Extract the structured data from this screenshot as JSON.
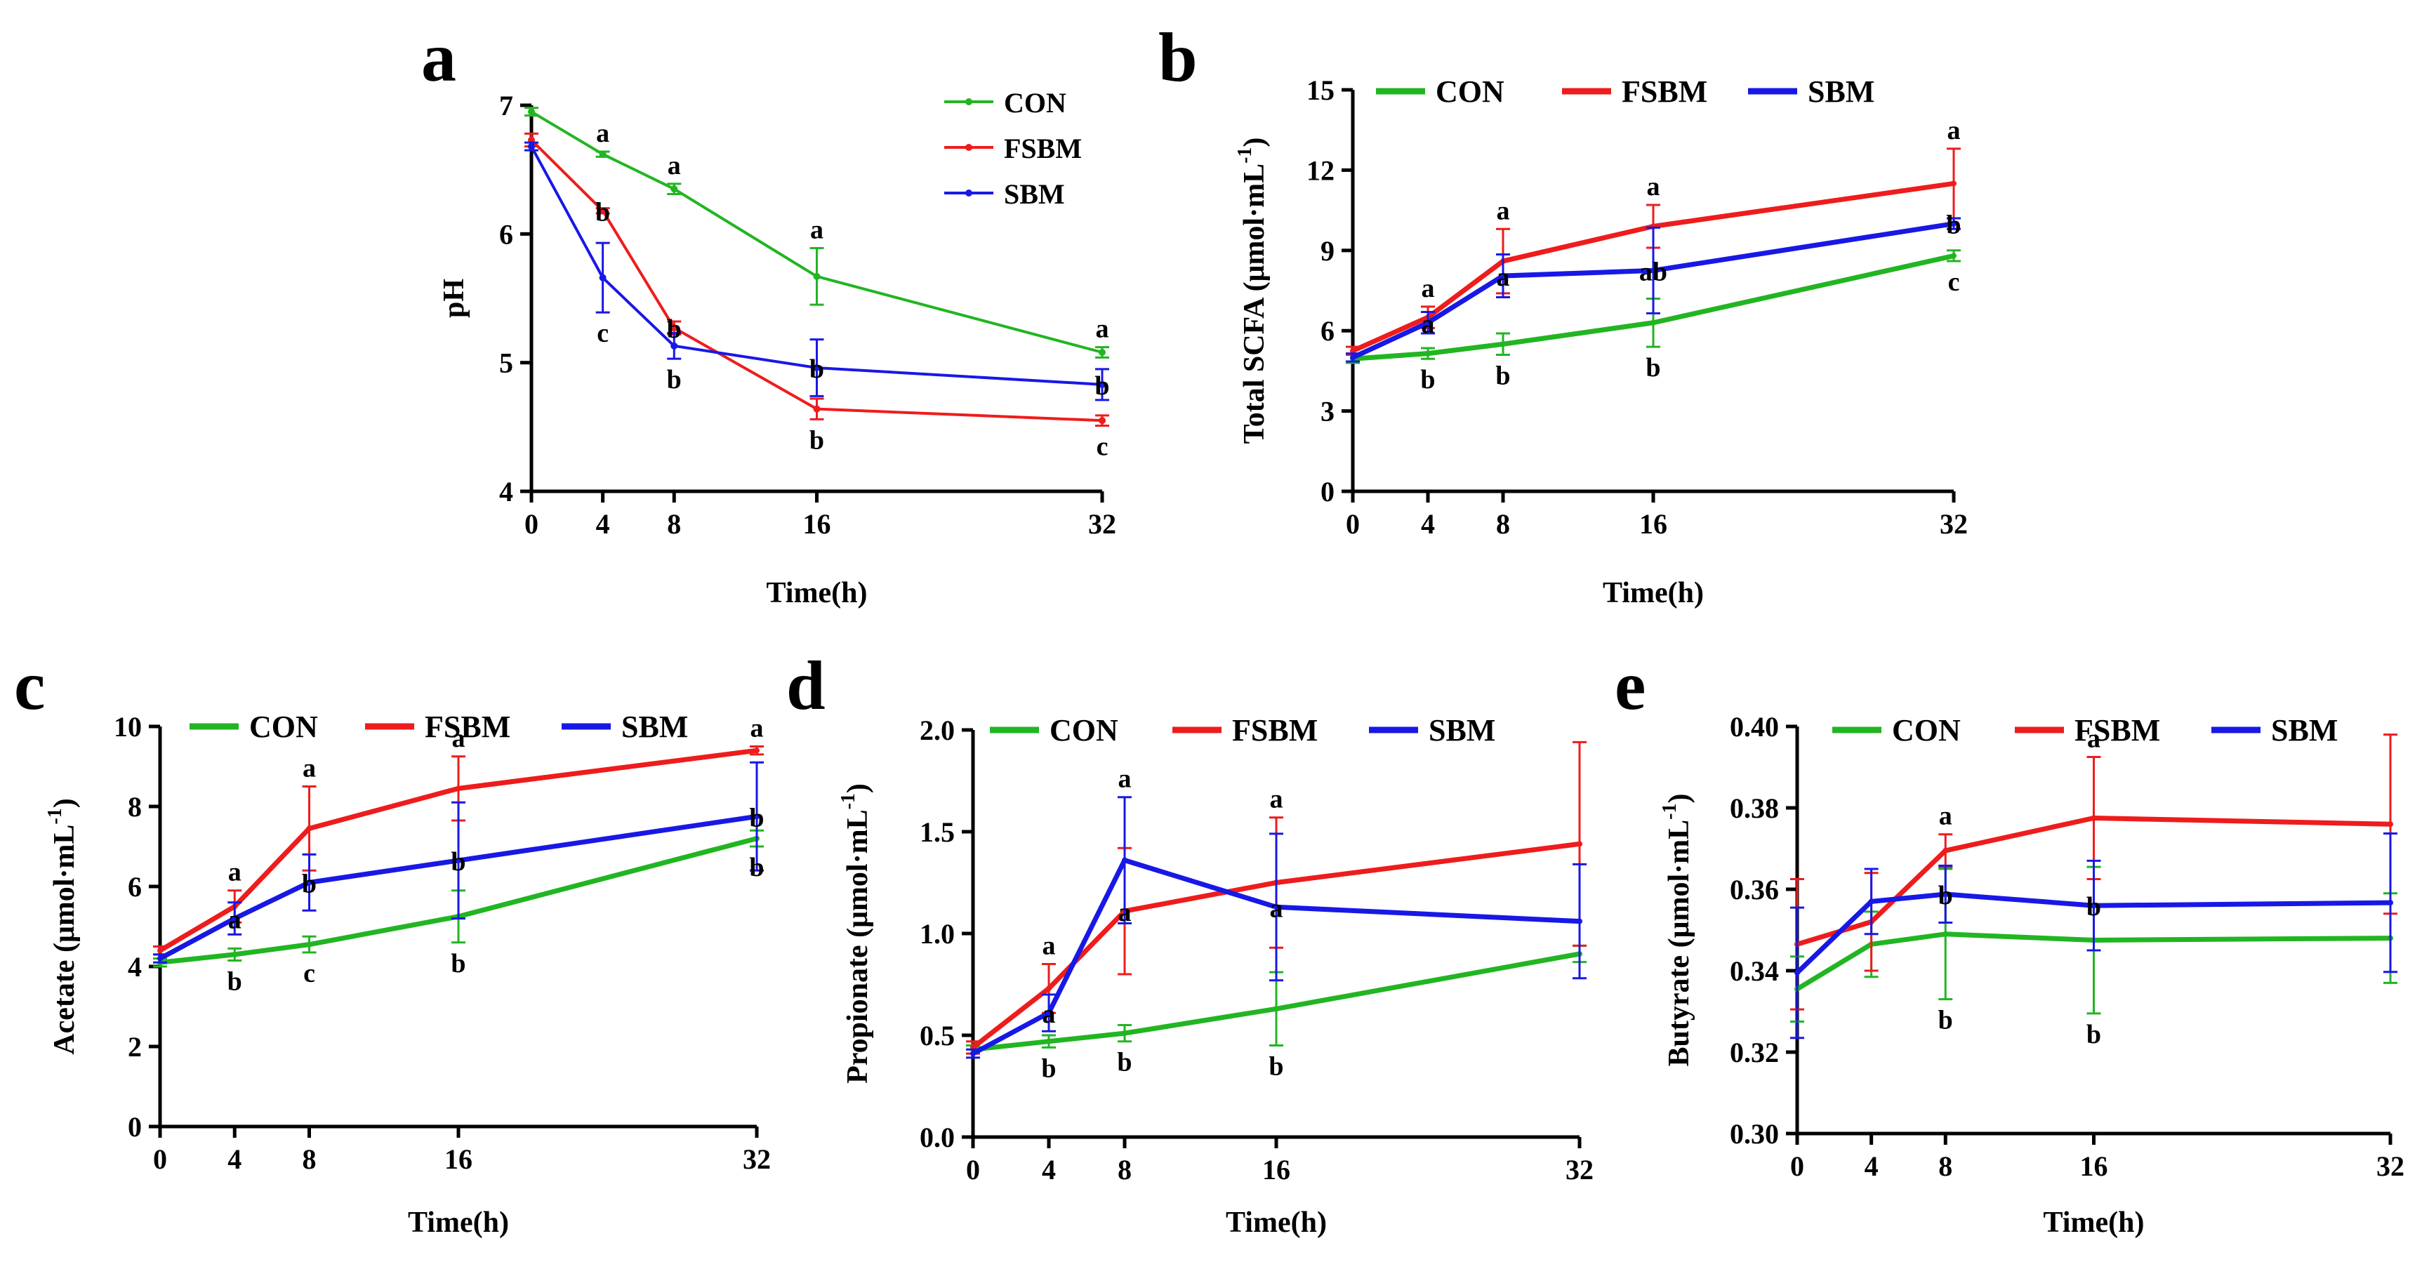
{
  "colors": {
    "CON": "#22b522",
    "FSBM": "#ee1c1c",
    "SBM": "#1818e6"
  },
  "chart_data": [
    {
      "id": "a",
      "type": "line",
      "panel_label": "a",
      "xlabel": "Time(h)",
      "ylabel": "pH",
      "x": [
        0,
        4,
        8,
        16,
        32
      ],
      "xticks": [
        "0",
        "4",
        "8",
        "16",
        "32"
      ],
      "ylim": [
        4,
        7
      ],
      "yticks": [
        "4",
        "5",
        "6",
        "7"
      ],
      "series": [
        {
          "name": "CON",
          "values": [
            6.95,
            6.62,
            6.35,
            5.67,
            5.08
          ],
          "err": [
            0.03,
            0.02,
            0.04,
            0.22,
            0.04
          ],
          "labels": [
            "",
            "a",
            "a",
            "a",
            "a"
          ]
        },
        {
          "name": "FSBM",
          "values": [
            6.73,
            6.18,
            5.27,
            4.64,
            4.55
          ],
          "err": [
            0.05,
            0.02,
            0.05,
            0.08,
            0.04
          ],
          "labels": [
            "",
            "b",
            "b",
            "b",
            "c"
          ]
        },
        {
          "name": "SBM",
          "values": [
            6.68,
            5.66,
            5.13,
            4.96,
            4.83
          ],
          "err": [
            0.03,
            0.27,
            0.1,
            0.22,
            0.12
          ],
          "labels": [
            "",
            "c",
            "b",
            "b",
            "b"
          ]
        }
      ]
    },
    {
      "id": "b",
      "type": "line",
      "panel_label": "b",
      "xlabel": "Time(h)",
      "ylabel": "Total  SCFA  (μmol·mL",
      "ylabel_sup": "-1",
      "ylabel_end": ")",
      "x": [
        0,
        4,
        8,
        16,
        32
      ],
      "xticks": [
        "0",
        "4",
        "8",
        "16",
        "32"
      ],
      "ylim": [
        0,
        15
      ],
      "yticks": [
        "0",
        "3",
        "6",
        "9",
        "12",
        "15"
      ],
      "series": [
        {
          "name": "CON",
          "values": [
            4.95,
            5.15,
            5.5,
            6.3,
            8.8
          ],
          "err": [
            0.15,
            0.2,
            0.4,
            0.9,
            0.2
          ],
          "labels": [
            "",
            "b",
            "b",
            "b",
            "c"
          ]
        },
        {
          "name": "FSBM",
          "values": [
            5.25,
            6.5,
            8.6,
            9.9,
            11.5
          ],
          "err": [
            0.15,
            0.4,
            1.2,
            0.8,
            1.3
          ],
          "labels": [
            "",
            "a",
            "a",
            "a",
            "a"
          ]
        },
        {
          "name": "SBM",
          "values": [
            5.0,
            6.3,
            8.05,
            8.25,
            10.0
          ],
          "err": [
            0.15,
            0.4,
            0.8,
            1.6,
            0.2
          ],
          "labels": [
            "",
            "a",
            "a",
            "ab",
            "b"
          ]
        }
      ]
    },
    {
      "id": "c",
      "type": "line",
      "panel_label": "c",
      "xlabel": "Time(h)",
      "ylabel": "Acetate  (μmol·mL",
      "ylabel_sup": "-1",
      "ylabel_end": ")",
      "x": [
        0,
        4,
        8,
        16,
        32
      ],
      "xticks": [
        "0",
        "4",
        "8",
        "16",
        "32"
      ],
      "ylim": [
        0,
        10
      ],
      "yticks": [
        "0",
        "2",
        "4",
        "6",
        "8",
        "10"
      ],
      "series": [
        {
          "name": "CON",
          "values": [
            4.1,
            4.3,
            4.55,
            5.25,
            7.2
          ],
          "err": [
            0.1,
            0.15,
            0.2,
            0.65,
            0.2
          ],
          "labels": [
            "",
            "b",
            "c",
            "b",
            "b"
          ]
        },
        {
          "name": "FSBM",
          "values": [
            4.4,
            5.5,
            7.45,
            8.45,
            9.4
          ],
          "err": [
            0.1,
            0.4,
            1.05,
            0.8,
            0.1
          ],
          "labels": [
            "",
            "a",
            "a",
            "a",
            "a"
          ]
        },
        {
          "name": "SBM",
          "values": [
            4.2,
            5.2,
            6.1,
            6.65,
            7.75
          ],
          "err": [
            0.1,
            0.4,
            0.7,
            1.45,
            1.35
          ],
          "labels": [
            "",
            "a",
            "b",
            "b",
            "b"
          ]
        }
      ]
    },
    {
      "id": "d",
      "type": "line",
      "panel_label": "d",
      "xlabel": "Time(h)",
      "ylabel": "Propionate  (μmol·mL",
      "ylabel_sup": "-1",
      "ylabel_end": ")",
      "x": [
        0,
        4,
        8,
        16,
        32
      ],
      "xticks": [
        "0",
        "4",
        "8",
        "16",
        "32"
      ],
      "ylim": [
        0,
        2
      ],
      "yticks": [
        "0.0",
        "0.5",
        "1.0",
        "1.5",
        "2.0"
      ],
      "series": [
        {
          "name": "CON",
          "values": [
            0.43,
            0.47,
            0.51,
            0.63,
            0.9
          ],
          "err": [
            0.02,
            0.03,
            0.04,
            0.18,
            0.04
          ],
          "labels": [
            "",
            "b",
            "b",
            "b",
            ""
          ]
        },
        {
          "name": "FSBM",
          "values": [
            0.44,
            0.73,
            1.11,
            1.25,
            1.44
          ],
          "err": [
            0.03,
            0.12,
            0.31,
            0.32,
            0.5
          ],
          "labels": [
            "",
            "a",
            "a",
            "a",
            ""
          ]
        },
        {
          "name": "SBM",
          "values": [
            0.41,
            0.61,
            1.36,
            1.13,
            1.06
          ],
          "err": [
            0.02,
            0.09,
            0.31,
            0.36,
            0.28
          ],
          "labels": [
            "",
            "a",
            "a",
            "a",
            ""
          ]
        }
      ]
    },
    {
      "id": "e",
      "type": "line",
      "panel_label": "e",
      "xlabel": "Time(h)",
      "ylabel": "Butyrate  (μmol·mL",
      "ylabel_sup": "-1",
      "ylabel_end": ")",
      "x": [
        0,
        4,
        8,
        16,
        32
      ],
      "xticks": [
        "0",
        "4",
        "8",
        "16",
        "32"
      ],
      "ylim": [
        0.3,
        0.4
      ],
      "yticks": [
        "0.30",
        "0.32",
        "0.34",
        "0.36",
        "0.38",
        "0.40"
      ],
      "series": [
        {
          "name": "CON",
          "values": [
            0.3355,
            0.3465,
            0.349,
            0.3475,
            0.348
          ],
          "err": [
            0.008,
            0.008,
            0.016,
            0.018,
            0.011
          ],
          "labels": [
            "",
            "",
            "b",
            "b",
            ""
          ]
        },
        {
          "name": "FSBM",
          "values": [
            0.3465,
            0.352,
            0.3695,
            0.3775,
            0.376
          ],
          "err": [
            0.016,
            0.012,
            0.004,
            0.015,
            0.022
          ],
          "labels": [
            "",
            "",
            "a",
            "a",
            ""
          ]
        },
        {
          "name": "SBM",
          "values": [
            0.3395,
            0.357,
            0.3588,
            0.356,
            0.3567
          ],
          "err": [
            0.016,
            0.008,
            0.007,
            0.011,
            0.017
          ],
          "labels": [
            "",
            "",
            "b",
            "b",
            ""
          ]
        }
      ]
    }
  ]
}
